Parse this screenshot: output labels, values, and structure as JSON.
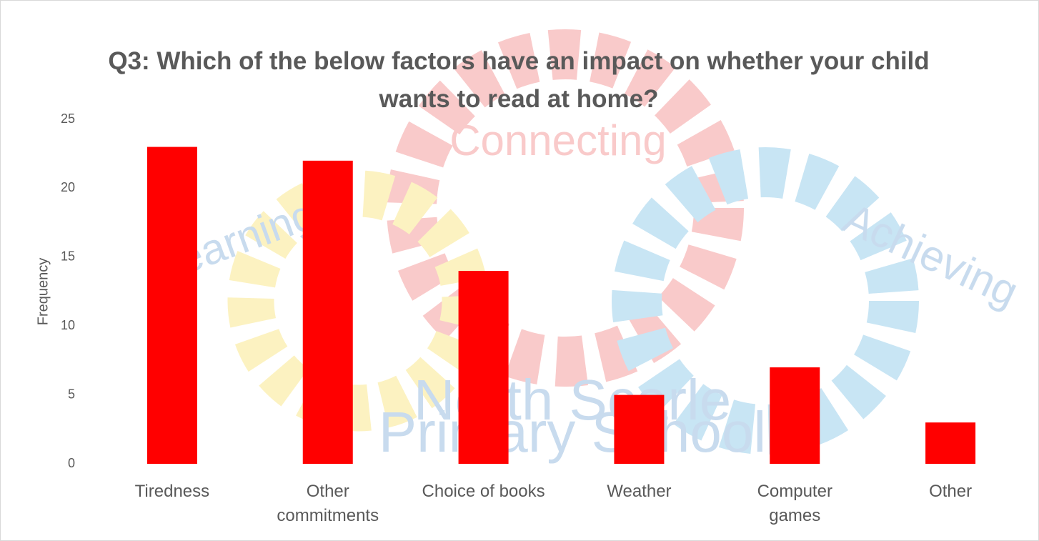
{
  "chart_data": {
    "type": "bar",
    "title": "Q3: Which of the below factors have an impact on whether your child wants to read at home?",
    "y_label": "Frequency",
    "categories": [
      "Tiredness",
      "Other commitments",
      "Choice of books",
      "Weather",
      "Computer games",
      "Other"
    ],
    "values": [
      23,
      22,
      14,
      5,
      7,
      3
    ],
    "color": "#ff0000",
    "ylim": [
      0,
      25
    ],
    "yticks": [
      0,
      5,
      10,
      15,
      20,
      25
    ],
    "grid": false,
    "annotations": [
      "Connecting",
      "Learning",
      "Achieving",
      "North Scarle",
      "Primary School"
    ]
  }
}
